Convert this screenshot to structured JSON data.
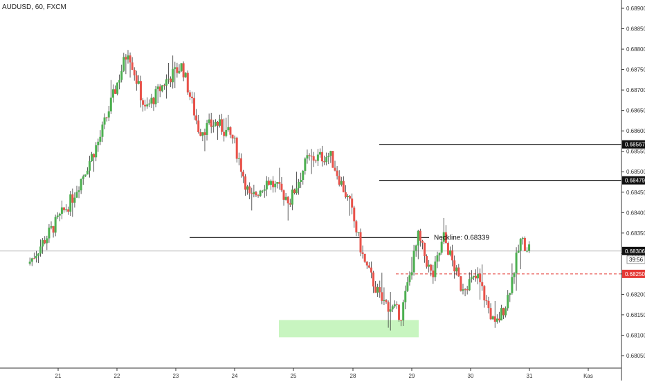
{
  "header": {
    "title": "AUDUSD, 60, FXCM"
  },
  "colors": {
    "up": "#4caf50",
    "down": "#e8524a",
    "wick": "#333333",
    "zone": "#c8f5c0",
    "stop": "#e53935",
    "last_price_line": "#bbbbbb"
  },
  "chart_data": {
    "type": "candlestick",
    "title": "AUDUSD, 60, FXCM",
    "x_axis": {
      "tick_labels": [
        "21",
        "22",
        "23",
        "24",
        "25",
        "28",
        "29",
        "30",
        "31",
        "Kas"
      ]
    },
    "y_axis": {
      "position": "right",
      "range": [
        0.6803,
        0.6892
      ],
      "tick_labels": [
        "0.68900",
        "0.68850",
        "0.68800",
        "0.68750",
        "0.68700",
        "0.68650",
        "0.68600",
        "0.68550",
        "0.68500",
        "0.68450",
        "0.68400",
        "0.68350",
        "0.68300",
        "0.68250",
        "0.68200",
        "0.68150",
        "0.68100",
        "0.68050"
      ]
    },
    "grid": false,
    "close_path": [
      [
        0,
        0.68275
      ],
      [
        1.5,
        0.6843
      ],
      [
        2.5,
        0.6858
      ],
      [
        3.5,
        0.688
      ],
      [
        4.1,
        0.6865
      ],
      [
        4.8,
        0.6872
      ],
      [
        5.4,
        0.6876
      ],
      [
        6,
        0.686
      ],
      [
        6.6,
        0.6862
      ],
      [
        7.2,
        0.6858
      ],
      [
        7.8,
        0.6843
      ],
      [
        8.4,
        0.6848
      ],
      [
        9.2,
        0.6843
      ],
      [
        9.8,
        0.6853
      ],
      [
        10.6,
        0.6854
      ],
      [
        11.3,
        0.6842
      ],
      [
        11.8,
        0.6828
      ],
      [
        12.4,
        0.68185
      ],
      [
        13.1,
        0.6815
      ],
      [
        13.7,
        0.6834
      ],
      [
        14.2,
        0.6824
      ],
      [
        14.6,
        0.6834
      ],
      [
        15.2,
        0.6822
      ],
      [
        15.8,
        0.6824
      ],
      [
        16.4,
        0.6812
      ],
      [
        16.8,
        0.6818
      ],
      [
        17.3,
        0.6833
      ],
      [
        17.6,
        0.68315
      ]
    ],
    "current_price": "0.68306",
    "countdown": "39:56",
    "annotations": {
      "neckline": {
        "label": "Neckline: 0.68339",
        "value": 0.68339
      },
      "target_1": {
        "label": "0.68567",
        "value": 0.68567
      },
      "target_2": {
        "label": "0.68479",
        "value": 0.68479
      },
      "stop_loss": {
        "label": "0.68250",
        "value": 0.6825
      },
      "support_zone": {
        "low": 0.68095,
        "high": 0.68137
      }
    }
  }
}
